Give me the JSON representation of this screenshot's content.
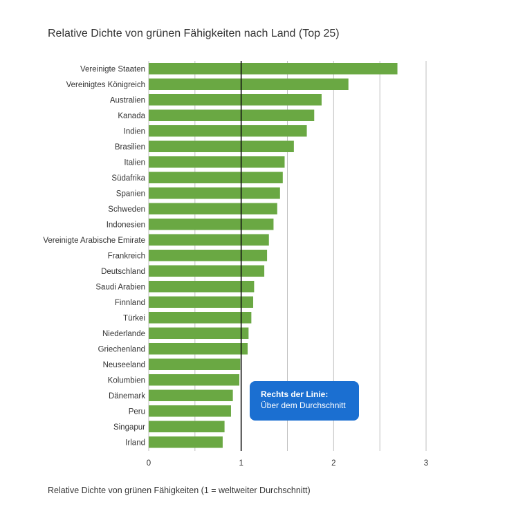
{
  "chart_data": {
    "type": "bar",
    "orientation": "horizontal",
    "title": "Relative Dichte von grünen Fähigkeiten nach Land (Top 25)",
    "xlabel": "Relative Dichte von grünen Fähigkeiten (1 = weltweiter Durchschnitt)",
    "ylabel": "",
    "xlim": [
      0,
      3
    ],
    "x_ticks": [
      0,
      1,
      2,
      3
    ],
    "grid": true,
    "reference_line": 1,
    "bar_color": "#6aa843",
    "reference_line_color": "#111111",
    "categories": [
      "Vereinigte Staaten",
      "Vereinigtes Königreich",
      "Australien",
      "Kanada",
      "Indien",
      "Brasilien",
      "Italien",
      "Südafrika",
      "Spanien",
      "Schweden",
      "Indonesien",
      "Vereinigte Arabische Emirate",
      "Frankreich",
      "Deutschland",
      "Saudi Arabien",
      "Finnland",
      "Türkei",
      "Niederlande",
      "Griechenland",
      "Neuseeland",
      "Kolumbien",
      "Dänemark",
      "Peru",
      "Singapur",
      "Irland"
    ],
    "values": [
      2.69,
      2.16,
      1.87,
      1.79,
      1.71,
      1.57,
      1.47,
      1.45,
      1.42,
      1.39,
      1.35,
      1.3,
      1.28,
      1.25,
      1.14,
      1.13,
      1.11,
      1.08,
      1.07,
      0.99,
      0.98,
      0.91,
      0.89,
      0.82,
      0.8
    ],
    "annotation": {
      "title": "Rechts der Linie:",
      "text": "Über dem Durchschnitt",
      "color": "#1b6fd1"
    }
  }
}
